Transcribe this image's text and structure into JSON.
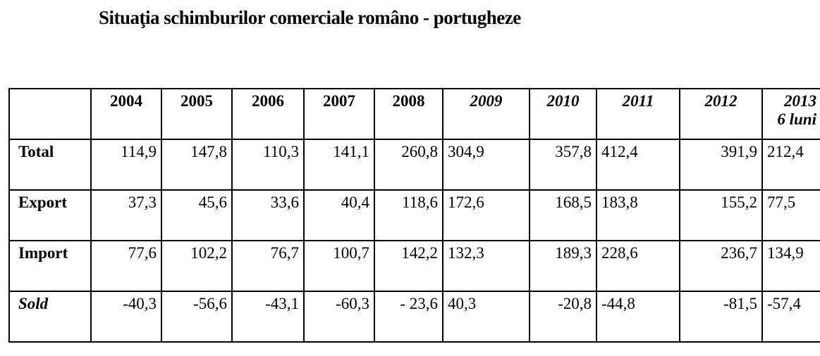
{
  "title": "Situaţia schimburilor comerciale româno - portugheze",
  "table": {
    "header": [
      "2004",
      "2005",
      "2006",
      "2007",
      "2008",
      "2009",
      "2010",
      "2011",
      "2012",
      [
        "2013",
        "6 luni"
      ]
    ],
    "rows": [
      {
        "label": "Total",
        "values": [
          "114,9",
          "147,8",
          "110,3",
          "141,1",
          "260,8",
          "304,9",
          "357,8",
          "412,4",
          "391,9",
          "212,4"
        ]
      },
      {
        "label": "Export",
        "values": [
          "37,3",
          "45,6",
          "33,6",
          "40,4",
          "118,6",
          "172,6",
          "168,5",
          "183,8",
          "155,2",
          "77,5"
        ]
      },
      {
        "label": "Import",
        "values": [
          "77,6",
          "102,2",
          "76,7",
          "100,7",
          "142,2",
          "132,3",
          "189,3",
          "228,6",
          "236,7",
          "134,9"
        ]
      },
      {
        "label": "Sold",
        "values": [
          "-40,3",
          "-56,6",
          "-43,1",
          "-60,3",
          "- 23,6",
          "40,3",
          "-20,8",
          "-44,8",
          "-81,5",
          "-57,4"
        ]
      }
    ]
  }
}
